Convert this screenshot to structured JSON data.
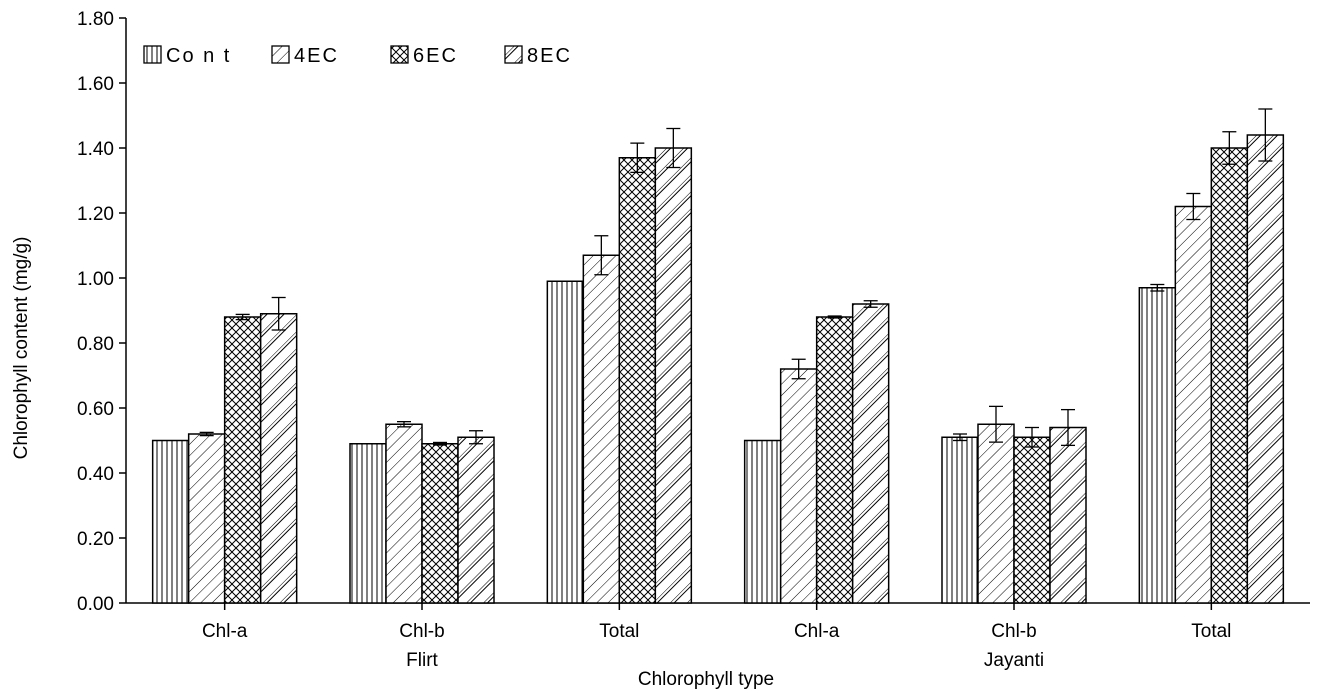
{
  "chart_data": {
    "type": "bar",
    "xlabel": "Chlorophyll type",
    "ylabel": "Chlorophyll content (mg/g)",
    "ylim": [
      0,
      1.8
    ],
    "yticks": [
      "0.00",
      "0.20",
      "0.40",
      "0.60",
      "0.80",
      "1.00",
      "1.20",
      "1.40",
      "1.60",
      "1.80"
    ],
    "categories": [
      "Chl-a",
      "Chl-b",
      "Total",
      "Chl-a",
      "Chl-b",
      "Total"
    ],
    "groups": [
      {
        "label": "Flirt",
        "categories": [
          0,
          1,
          2
        ]
      },
      {
        "label": "Jayanti",
        "categories": [
          3,
          4,
          5
        ]
      }
    ],
    "legend_position": "top-left",
    "series": [
      {
        "name": "Co n t",
        "pattern": "vertical-lines",
        "values": [
          0.5,
          0.49,
          0.99,
          0.5,
          0.51,
          0.97
        ],
        "errors": [
          0.0,
          0.0,
          0.0,
          0.0,
          0.01,
          0.01
        ]
      },
      {
        "name": "4EC",
        "pattern": "diagonal-lines",
        "values": [
          0.52,
          0.55,
          1.07,
          0.72,
          0.55,
          1.22
        ],
        "errors": [
          0.005,
          0.008,
          0.06,
          0.03,
          0.055,
          0.04
        ]
      },
      {
        "name": "6EC",
        "pattern": "crosshatch",
        "values": [
          0.88,
          0.49,
          1.37,
          0.88,
          0.51,
          1.4
        ],
        "errors": [
          0.008,
          0.004,
          0.045,
          0.003,
          0.03,
          0.05
        ]
      },
      {
        "name": "8EC",
        "pattern": "wide-diagonal-lines",
        "values": [
          0.89,
          0.51,
          1.4,
          0.92,
          0.54,
          1.44
        ],
        "errors": [
          0.05,
          0.02,
          0.06,
          0.01,
          0.055,
          0.08
        ]
      }
    ]
  }
}
